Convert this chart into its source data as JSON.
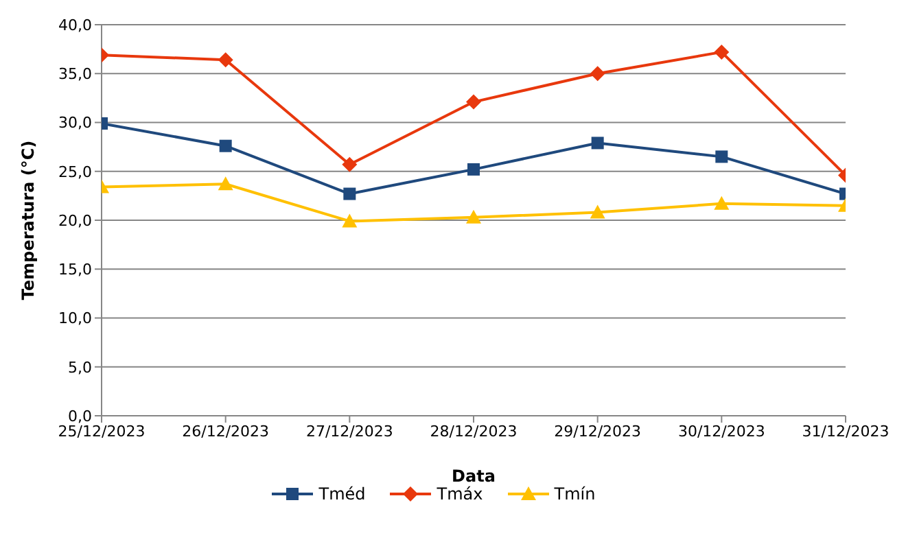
{
  "chart_data": {
    "type": "line",
    "xlabel": "Data",
    "ylabel": "Temperatura (°C)",
    "categories": [
      "25/12/2023",
      "26/12/2023",
      "27/12/2023",
      "28/12/2023",
      "29/12/2023",
      "30/12/2023",
      "31/12/2023"
    ],
    "series": [
      {
        "name": "Tméd",
        "color": "#1f497d",
        "marker": "square",
        "values": [
          29.9,
          27.6,
          22.7,
          25.2,
          27.9,
          26.5,
          22.7
        ]
      },
      {
        "name": "Tmáx",
        "color": "#e8380d",
        "marker": "diamond",
        "values": [
          36.9,
          36.4,
          25.7,
          32.1,
          35.0,
          37.2,
          24.6
        ]
      },
      {
        "name": "Tmín",
        "color": "#ffc000",
        "marker": "triangle",
        "values": [
          23.4,
          23.7,
          19.9,
          20.3,
          20.8,
          21.7,
          21.5
        ]
      }
    ],
    "ylim": [
      0,
      40
    ],
    "yticks": [
      {
        "value": 0,
        "label": "0,0"
      },
      {
        "value": 5,
        "label": "5,0"
      },
      {
        "value": 10,
        "label": "10,0"
      },
      {
        "value": 15,
        "label": "15,0"
      },
      {
        "value": 20,
        "label": "20,0"
      },
      {
        "value": 25,
        "label": "25,0"
      },
      {
        "value": 30,
        "label": "30,0"
      },
      {
        "value": 35,
        "label": "35,0"
      },
      {
        "value": 40,
        "label": "40,0"
      }
    ],
    "grid": "y",
    "legend": "bottom",
    "line_style": "solid"
  }
}
